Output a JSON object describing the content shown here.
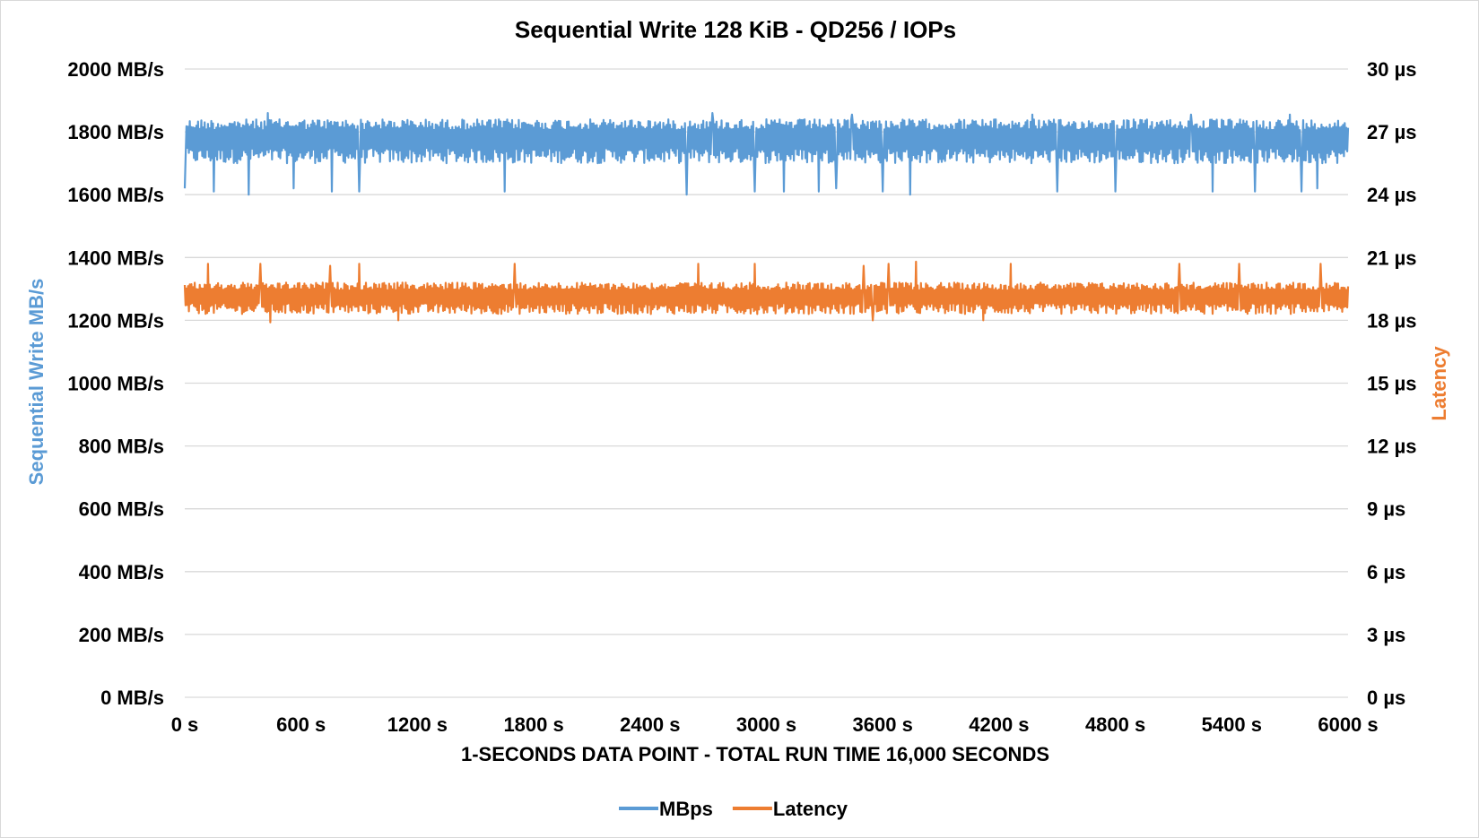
{
  "chart_data": {
    "type": "line",
    "title": "Sequential Write 128 KiB - QD256 / IOPs",
    "xlabel": "1-SECONDS DATA POINT - TOTAL RUN TIME 16,000 SECONDS",
    "ylabel": "Sequential Write MB/s",
    "y2label": "Latency",
    "x_ticks": [
      "0 s",
      "600 s",
      "1200 s",
      "1800 s",
      "2400 s",
      "3000 s",
      "3600 s",
      "4200 s",
      "4800 s",
      "5400 s",
      "6000 s"
    ],
    "xlim": [
      0,
      6000
    ],
    "y_ticks": [
      "0 MB/s",
      "200 MB/s",
      "400 MB/s",
      "600 MB/s",
      "800 MB/s",
      "1000 MB/s",
      "1200 MB/s",
      "1400 MB/s",
      "1600 MB/s",
      "1800 MB/s",
      "2000 MB/s"
    ],
    "ylim": [
      0,
      2000
    ],
    "y2_ticks": [
      "0 µs",
      "3 µs",
      "6 µs",
      "9 µs",
      "12 µs",
      "15 µs",
      "18 µs",
      "21 µs",
      "24 µs",
      "27 µs",
      "30 µs"
    ],
    "y2lim": [
      0,
      30
    ],
    "grid": true,
    "legend_position": "bottom",
    "series": [
      {
        "name": "MBps",
        "axis": "left",
        "color": "#5b9bd5",
        "band": {
          "low": 1700,
          "high": 1840
        },
        "dips": [
          {
            "x": 0,
            "y": 1620
          },
          {
            "x": 150,
            "y": 1610
          },
          {
            "x": 330,
            "y": 1600
          },
          {
            "x": 560,
            "y": 1620
          },
          {
            "x": 760,
            "y": 1610
          },
          {
            "x": 900,
            "y": 1610
          },
          {
            "x": 1650,
            "y": 1610
          },
          {
            "x": 2590,
            "y": 1600
          },
          {
            "x": 2940,
            "y": 1610
          },
          {
            "x": 3090,
            "y": 1610
          },
          {
            "x": 3270,
            "y": 1610
          },
          {
            "x": 3360,
            "y": 1620
          },
          {
            "x": 3600,
            "y": 1610
          },
          {
            "x": 3740,
            "y": 1600
          },
          {
            "x": 4500,
            "y": 1610
          },
          {
            "x": 4800,
            "y": 1610
          },
          {
            "x": 5300,
            "y": 1610
          },
          {
            "x": 5520,
            "y": 1610
          },
          {
            "x": 5760,
            "y": 1610
          },
          {
            "x": 5840,
            "y": 1620
          }
        ],
        "peaks": [
          {
            "x": 430,
            "y": 1860
          },
          {
            "x": 2720,
            "y": 1860
          },
          {
            "x": 3440,
            "y": 1855
          },
          {
            "x": 4370,
            "y": 1855
          },
          {
            "x": 5190,
            "y": 1855
          },
          {
            "x": 5700,
            "y": 1855
          }
        ]
      },
      {
        "name": "Latency",
        "axis": "right",
        "color": "#ed7d31",
        "band": {
          "low": 18.3,
          "high": 19.8
        },
        "peaks": [
          {
            "x": 120,
            "y": 20.7
          },
          {
            "x": 390,
            "y": 20.7
          },
          {
            "x": 750,
            "y": 20.6
          },
          {
            "x": 900,
            "y": 20.7
          },
          {
            "x": 1700,
            "y": 20.7
          },
          {
            "x": 2650,
            "y": 20.7
          },
          {
            "x": 2940,
            "y": 20.7
          },
          {
            "x": 3500,
            "y": 20.6
          },
          {
            "x": 3630,
            "y": 20.7
          },
          {
            "x": 3770,
            "y": 20.8
          },
          {
            "x": 4260,
            "y": 20.7
          },
          {
            "x": 5130,
            "y": 20.7
          },
          {
            "x": 5440,
            "y": 20.7
          },
          {
            "x": 5860,
            "y": 20.7
          }
        ],
        "dips": [
          {
            "x": 440,
            "y": 17.9
          },
          {
            "x": 1100,
            "y": 18.0
          },
          {
            "x": 3550,
            "y": 18.0
          },
          {
            "x": 4120,
            "y": 18.0
          }
        ]
      }
    ]
  }
}
